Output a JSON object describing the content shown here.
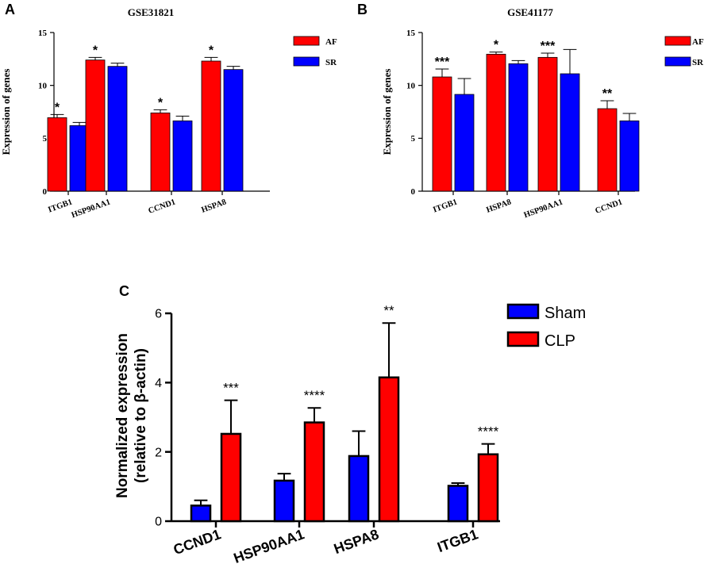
{
  "chart_data": [
    {
      "id": "A",
      "panel_label": "A",
      "type": "bar",
      "title": "GSE31821",
      "ylabel": "Expression of genes",
      "xlabel": "",
      "ylim": [
        0,
        15
      ],
      "yticks": [
        0,
        5,
        10,
        15
      ],
      "categories": [
        "ITGB1",
        "HSP90AA1",
        "CCND1",
        "HSPA8"
      ],
      "series": [
        {
          "name": "AF",
          "color": "#ff0000",
          "values": [
            6.95,
            12.4,
            7.4,
            12.3
          ],
          "errors": [
            0.3,
            0.25,
            0.3,
            0.35
          ]
        },
        {
          "name": "SR",
          "color": "#0000ff",
          "values": [
            6.2,
            11.8,
            6.65,
            11.5
          ],
          "errors": [
            0.3,
            0.3,
            0.45,
            0.3
          ]
        }
      ],
      "annotations": [
        "*",
        "*",
        "*",
        "*"
      ],
      "legend_position": "top-right"
    },
    {
      "id": "B",
      "panel_label": "B",
      "type": "bar",
      "title": "GSE41177",
      "ylabel": "Expression of genes",
      "xlabel": "",
      "ylim": [
        0,
        15
      ],
      "yticks": [
        0,
        5,
        10,
        15
      ],
      "categories": [
        "ITGB1",
        "HSPA8",
        "HSP90AA1",
        "CCND1"
      ],
      "series": [
        {
          "name": "AF",
          "color": "#ff0000",
          "values": [
            10.8,
            12.95,
            12.65,
            7.8
          ],
          "errors": [
            0.75,
            0.2,
            0.4,
            0.75
          ]
        },
        {
          "name": "SR",
          "color": "#0000ff",
          "values": [
            9.15,
            12.05,
            11.1,
            6.65
          ],
          "errors": [
            1.5,
            0.3,
            2.3,
            0.7
          ]
        }
      ],
      "annotations": [
        "***",
        "*",
        "***",
        "**"
      ],
      "legend_position": "top-right"
    },
    {
      "id": "C",
      "panel_label": "C",
      "type": "bar",
      "title": "",
      "ylabel": "Normalized expression\n(relative to β-actin)",
      "xlabel": "",
      "ylim": [
        0,
        6
      ],
      "yticks": [
        0,
        2,
        4,
        6
      ],
      "categories": [
        "CCND1",
        "HSP90AA1",
        "HSPA8",
        "ITGB1"
      ],
      "series": [
        {
          "name": "Sham",
          "color": "#0000ff",
          "values": [
            0.45,
            1.17,
            1.88,
            1.02
          ],
          "errors": [
            0.15,
            0.2,
            0.72,
            0.08
          ]
        },
        {
          "name": "CLP",
          "color": "#ff0000",
          "values": [
            2.52,
            2.85,
            4.15,
            1.93
          ],
          "errors": [
            0.97,
            0.42,
            1.57,
            0.3
          ]
        }
      ],
      "annotations": [
        "***",
        "****",
        "**",
        "****"
      ],
      "legend_position": "top-right"
    }
  ]
}
